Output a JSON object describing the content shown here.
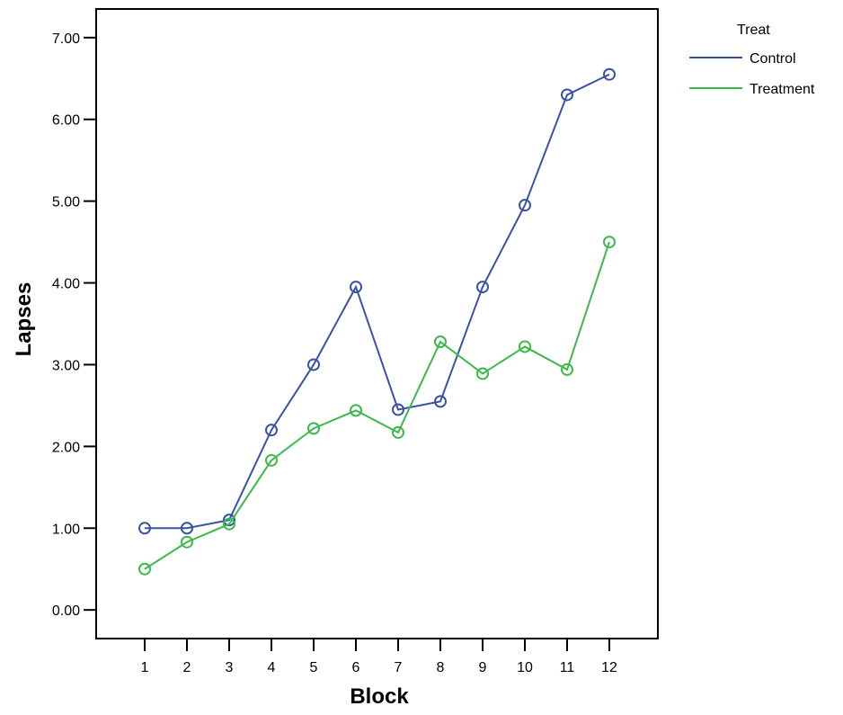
{
  "chart_data": {
    "type": "line",
    "xlabel": "Block",
    "ylabel": "Lapses",
    "categories": [
      "1",
      "2",
      "3",
      "4",
      "5",
      "6",
      "7",
      "8",
      "9",
      "10",
      "11",
      "12"
    ],
    "ylim": [
      -0.35,
      7.35
    ],
    "y_ticks": [
      0.0,
      1.0,
      2.0,
      3.0,
      4.0,
      5.0,
      6.0,
      7.0
    ],
    "y_tick_labels": [
      "0.00",
      "1.00",
      "2.00",
      "3.00",
      "4.00",
      "5.00",
      "6.00",
      "7.00"
    ],
    "grid": false,
    "marker": "open-circle",
    "legend": {
      "title": "Treat",
      "placement": "top-right-outside"
    },
    "series": [
      {
        "name": "Control",
        "color": "#3a52a3",
        "values": [
          1.0,
          1.0,
          1.1,
          2.2,
          3.0,
          3.95,
          2.45,
          2.55,
          3.95,
          4.95,
          6.3,
          6.55
        ]
      },
      {
        "name": "Treatment",
        "color": "#3cb94a",
        "values": [
          0.5,
          0.83,
          1.05,
          1.83,
          2.22,
          2.44,
          2.17,
          3.28,
          2.89,
          3.22,
          2.94,
          4.5
        ]
      }
    ]
  }
}
